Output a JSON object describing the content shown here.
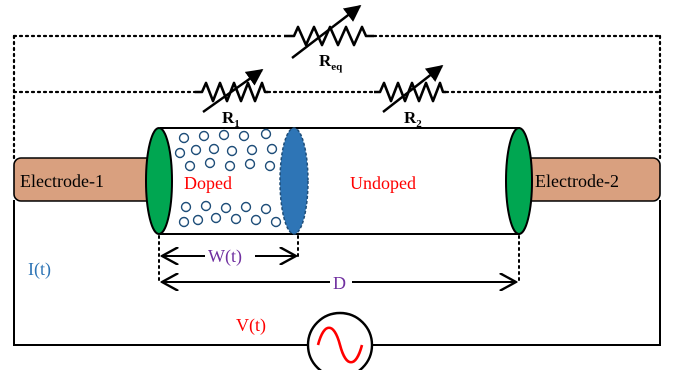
{
  "diagram": {
    "resistors": {
      "req": {
        "label_main": "R",
        "label_sub": "eq"
      },
      "r1": {
        "label_main": "R",
        "label_sub": "1"
      },
      "r2": {
        "label_main": "R",
        "label_sub": "2"
      }
    },
    "electrodes": {
      "left": "Electrode-1",
      "right": "Electrode-2"
    },
    "regions": {
      "doped": "Doped",
      "undoped": "Undoped"
    },
    "dimensions": {
      "width_label": "W(t)",
      "length_label": "D"
    },
    "signals": {
      "current": "I(t)",
      "voltage": "V(t)"
    },
    "colors": {
      "electrode_fill": "#d9a07f",
      "electrode_cap": "#00a651",
      "boundary": "#2e75b6",
      "dopant": "#1f4e79",
      "region_text": "#ff0000",
      "dimension_text": "#7030a0",
      "current_text": "#2e75b6",
      "source_wave": "#ff0000"
    },
    "icons": {
      "source": "ac-source-icon",
      "variable_resistor": "variable-resistor-icon"
    }
  }
}
